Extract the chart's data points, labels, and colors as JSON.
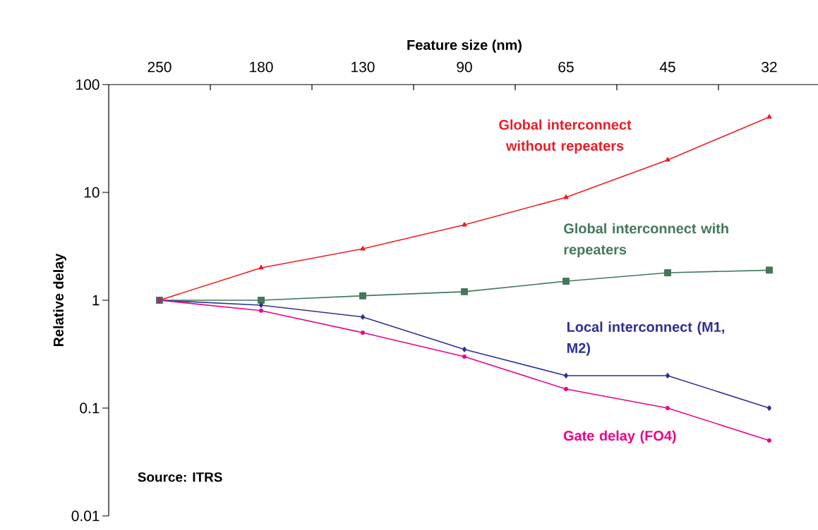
{
  "chart_data": {
    "type": "line",
    "xlabel": "Feature size (nm)",
    "ylabel": "Relative delay",
    "categories": [
      "250",
      "180",
      "130",
      "90",
      "65",
      "45",
      "32"
    ],
    "log": "y",
    "ylim": [
      0.01,
      100
    ],
    "yticks": [
      0.01,
      0.1,
      1,
      10,
      100
    ],
    "line_style": "solid",
    "series": [
      {
        "name": "Global interconnect without repeaters",
        "color": "#ee1c25",
        "marker": "triangle",
        "values": [
          1,
          2,
          3,
          5,
          9,
          20,
          50
        ]
      },
      {
        "name": "Global interconnect with repeaters",
        "color": "#43785a",
        "marker": "square",
        "values": [
          1,
          1,
          1.1,
          1.2,
          1.5,
          1.8,
          1.9
        ]
      },
      {
        "name": "Local interconnect (M1, M2)",
        "color": "#2e3192",
        "marker": "diamond",
        "values": [
          1,
          0.9,
          0.7,
          0.35,
          0.2,
          0.2,
          0.1
        ]
      },
      {
        "name": "Gate delay (FO4)",
        "color": "#ec008c",
        "marker": "circle",
        "values": [
          1,
          0.8,
          0.5,
          0.3,
          0.15,
          0.1,
          0.05
        ]
      }
    ],
    "annotations": [
      "Source: ITRS"
    ]
  }
}
